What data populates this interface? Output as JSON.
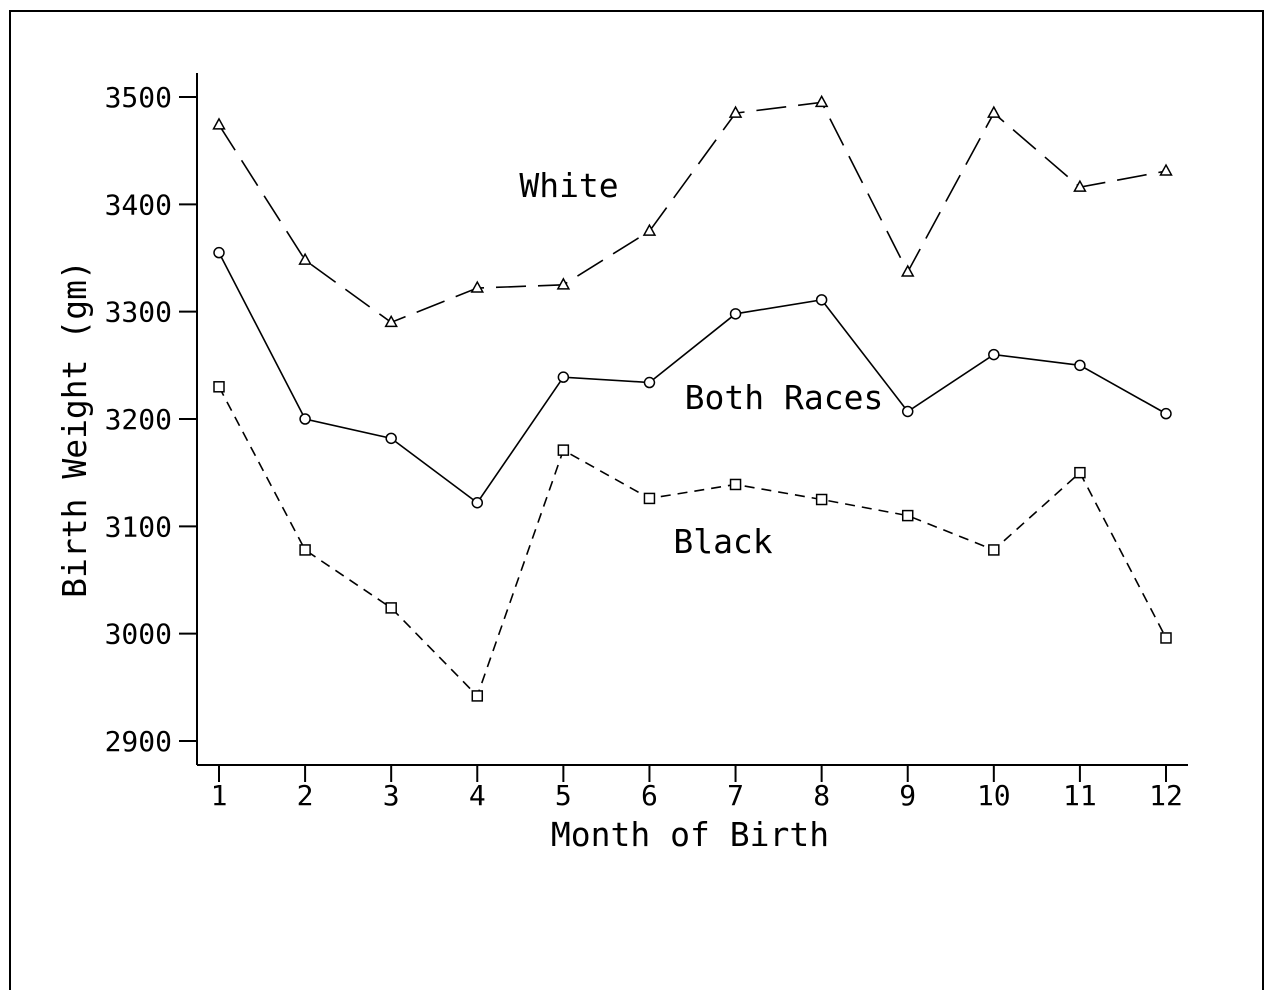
{
  "chart_data": {
    "type": "line",
    "title": "",
    "xlabel": "Month of Birth",
    "ylabel": "Birth Weight (gm)",
    "x": [
      1,
      2,
      3,
      4,
      5,
      6,
      7,
      8,
      9,
      10,
      11,
      12
    ],
    "xticks": [
      "1",
      "2",
      "3",
      "4",
      "5",
      "6",
      "7",
      "8",
      "9",
      "10",
      "11",
      "12"
    ],
    "yticks": [
      "2900",
      "3000",
      "3100",
      "3200",
      "3300",
      "3400",
      "3500"
    ],
    "xlim": [
      0.75,
      12.25
    ],
    "ylim": [
      2880,
      3522
    ],
    "grid": false,
    "series": [
      {
        "name": "White",
        "line_style": "long-dash",
        "marker": "triangle",
        "values": [
          3474,
          3348,
          3290,
          3322,
          3325,
          3375,
          3485,
          3495,
          3337,
          3485,
          3416,
          3431
        ]
      },
      {
        "name": "Both Races",
        "line_style": "solid",
        "marker": "circle",
        "values": [
          3355,
          3200,
          3182,
          3122,
          3239,
          3234,
          3298,
          3311,
          3207,
          3260,
          3250,
          3205
        ]
      },
      {
        "name": "Black",
        "line_style": "short-dash",
        "marker": "square",
        "values": [
          3230,
          3078,
          3024,
          2942,
          3171,
          3126,
          3139,
          3125,
          3110,
          3078,
          3150,
          2996
        ]
      }
    ]
  }
}
